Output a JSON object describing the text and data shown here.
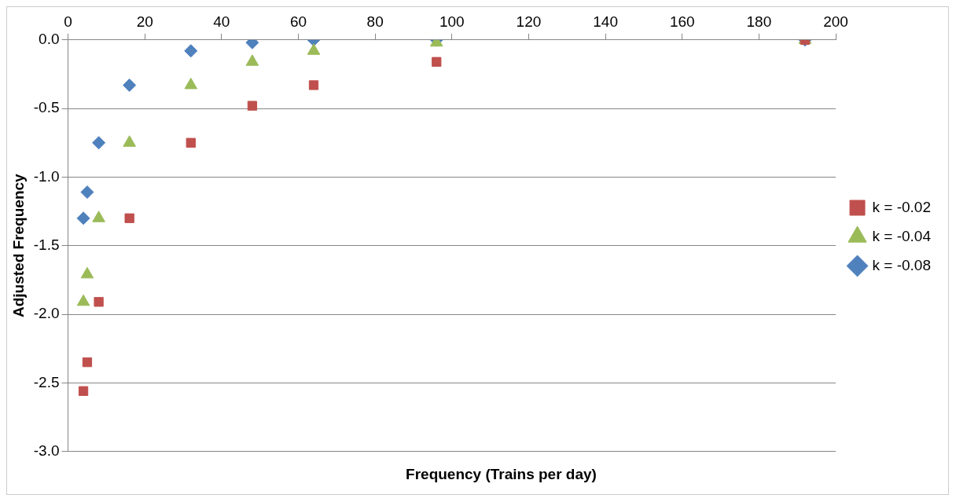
{
  "chart_data": {
    "type": "scatter",
    "xlabel": "Frequency (Trains per day)",
    "ylabel": "Adjusted Frequency",
    "x": [
      4,
      5,
      8,
      16,
      32,
      48,
      64,
      96,
      192
    ],
    "series": [
      {
        "name": "k = -0.02",
        "color": "#c0504d",
        "marker": "square",
        "values": [
          -2.56,
          -2.35,
          -1.91,
          -1.3,
          -0.75,
          -0.48,
          -0.33,
          -0.16,
          0
        ]
      },
      {
        "name": "k = -0.04",
        "color": "#9bbb59",
        "marker": "triangle",
        "values": [
          -1.91,
          -1.71,
          -1.3,
          -0.75,
          -0.33,
          -0.16,
          -0.08,
          -0.02,
          0
        ]
      },
      {
        "name": "k = -0.08",
        "color": "#4f81bd",
        "marker": "diamond",
        "values": [
          -1.3,
          -1.11,
          -0.75,
          -0.33,
          -0.08,
          -0.02,
          0,
          0,
          0
        ]
      }
    ],
    "xlim": [
      0,
      200
    ],
    "xticks": [
      0,
      20,
      40,
      60,
      80,
      100,
      120,
      140,
      160,
      180,
      200
    ],
    "ylim": [
      -3,
      0
    ],
    "yticks": [
      {
        "value": -3,
        "label": "-3.0"
      },
      -2.5,
      {
        "value": -2,
        "label": "-2.0"
      },
      -1.5,
      {
        "value": -1,
        "label": "-1.0"
      },
      -0.5,
      {
        "value": 0,
        "label": "0.0"
      }
    ],
    "grid": "y",
    "legend": "right"
  }
}
